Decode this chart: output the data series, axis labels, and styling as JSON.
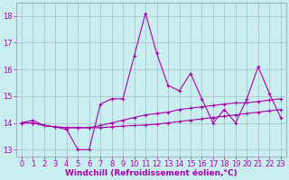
{
  "title": "",
  "xlabel": "Windchill (Refroidissement éolien,°C)",
  "ylabel": "",
  "bg_color": "#c8eef0",
  "grid_color": "#aabbcc",
  "line_color": "#aa00aa",
  "x": [
    0,
    1,
    2,
    3,
    4,
    5,
    6,
    7,
    8,
    9,
    10,
    11,
    12,
    13,
    14,
    15,
    16,
    17,
    18,
    19,
    20,
    21,
    22,
    23
  ],
  "series1": [
    14.0,
    14.1,
    13.9,
    13.85,
    13.75,
    13.0,
    13.0,
    14.7,
    14.9,
    14.9,
    16.5,
    18.1,
    16.6,
    15.4,
    15.2,
    15.85,
    14.9,
    14.0,
    14.5,
    14.0,
    14.9,
    16.1,
    15.1,
    14.2
  ],
  "series2": [
    14.0,
    14.0,
    13.9,
    13.85,
    13.82,
    13.82,
    13.82,
    13.9,
    14.0,
    14.1,
    14.2,
    14.3,
    14.35,
    14.4,
    14.5,
    14.55,
    14.6,
    14.65,
    14.7,
    14.75,
    14.75,
    14.8,
    14.85,
    14.9
  ],
  "series3": [
    14.0,
    14.0,
    13.9,
    13.85,
    13.82,
    13.82,
    13.82,
    13.82,
    13.85,
    13.88,
    13.9,
    13.92,
    13.95,
    14.0,
    14.05,
    14.1,
    14.15,
    14.2,
    14.25,
    14.3,
    14.35,
    14.4,
    14.45,
    14.5
  ],
  "ylim": [
    12.75,
    18.5
  ],
  "xlim": [
    -0.5,
    23.5
  ],
  "yticks": [
    13,
    14,
    15,
    16,
    17,
    18
  ],
  "xticks": [
    0,
    1,
    2,
    3,
    4,
    5,
    6,
    7,
    8,
    9,
    10,
    11,
    12,
    13,
    14,
    15,
    16,
    17,
    18,
    19,
    20,
    21,
    22,
    23
  ],
  "xlabel_fontsize": 6.5,
  "tick_fontsize": 6.0,
  "linewidth": 0.8,
  "markersize": 2.5
}
